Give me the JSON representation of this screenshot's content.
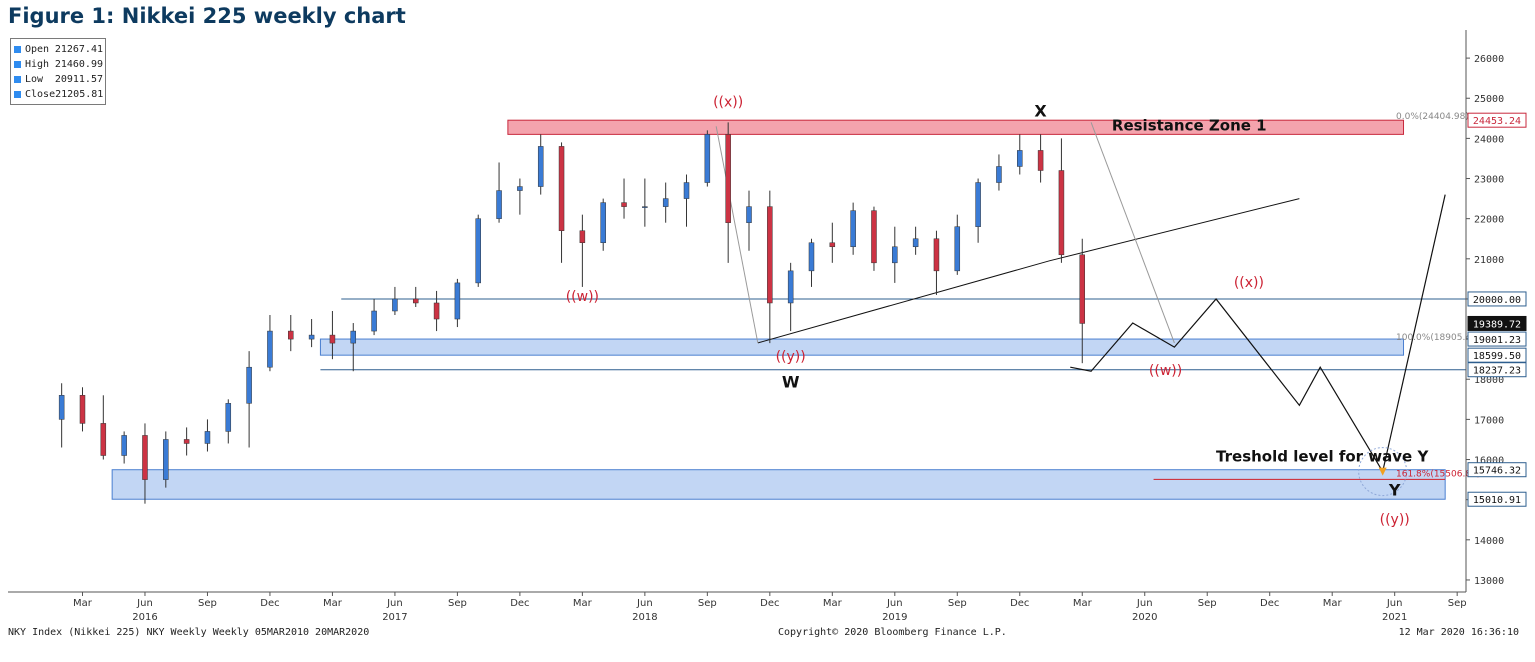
{
  "figure_title": "Figure 1: Nikkei 225 weekly chart",
  "ohlc_box": [
    {
      "key": "Open",
      "value": "21267.41"
    },
    {
      "key": "High",
      "value": "21460.99"
    },
    {
      "key": "Low",
      "value": "20911.57"
    },
    {
      "key": "Close",
      "value": "21205.81"
    }
  ],
  "footer": {
    "left": "NKY Index (Nikkei 225) NKY Weekly  Weekly 05MAR2010 20MAR2020",
    "center": "Copyright© 2020 Bloomberg Finance L.P.",
    "right": "12 Mar 2020 16:36:10"
  },
  "colors": {
    "up_candle": "#3a7bd5",
    "down_candle": "#cc3344",
    "resistance_zone": "#f4a3ad",
    "support_zone": "#c2d6f4",
    "support_zone_border": "#4a7fd0",
    "wave_path": "#111111",
    "label_red": "#cc2233"
  },
  "chart_data": {
    "type": "candlestick",
    "title": "Figure 1: Nikkei 225 weekly chart",
    "y_axis": {
      "side": "right",
      "range": [
        12700,
        26700
      ],
      "ticks": [
        13000,
        14000,
        15000,
        16000,
        17000,
        18000,
        19000,
        20000,
        21000,
        22000,
        23000,
        24000,
        25000,
        26000
      ]
    },
    "x_axis": {
      "month_ticks": [
        "Mar",
        "Jun",
        "Sep",
        "Dec",
        "Mar",
        "Jun",
        "Sep",
        "Dec",
        "Mar",
        "Jun",
        "Sep",
        "Dec",
        "Mar",
        "Jun",
        "Sep",
        "Dec",
        "Mar",
        "Jun",
        "Sep",
        "Dec",
        "Mar",
        "Jun",
        "Sep"
      ],
      "year_labels": [
        "2016",
        "2017",
        "2018",
        "2019",
        "2020",
        "2021"
      ],
      "range": [
        "2016-02",
        "2021-09"
      ]
    },
    "price_tags": [
      {
        "value": 24453.24,
        "label": "24453.24",
        "style": "red"
      },
      {
        "value": 20000.0,
        "label": "20000.00",
        "style": "blue"
      },
      {
        "value": 19389.72,
        "label": "19389.72",
        "style": "black"
      },
      {
        "value": 19001.23,
        "label": "19001.23",
        "style": "blue"
      },
      {
        "value": 18599.5,
        "label": "18599.50",
        "style": "blue"
      },
      {
        "value": 18237.23,
        "label": "18237.23",
        "style": "blue"
      },
      {
        "value": 15746.32,
        "label": "15746.32",
        "style": "blue"
      },
      {
        "value": 15010.91,
        "label": "15010.91",
        "style": "blue"
      }
    ],
    "zones": [
      {
        "name": "Resistance Zone 1",
        "from": "2017-12",
        "to": "2021-07",
        "low": 24100,
        "high": 24453.24,
        "style": "resistance"
      },
      {
        "name": "",
        "from": "2017-03",
        "to": "2021-07",
        "low": 18599.5,
        "high": 19001.23,
        "style": "support"
      },
      {
        "name": "",
        "from": "2016-05",
        "to": "2021-09",
        "low": 15010.91,
        "high": 15746.32,
        "style": "support"
      }
    ],
    "horizontal_lines": [
      {
        "value": 20000.0,
        "from": "2017-04",
        "to": "2021-10"
      },
      {
        "value": 18237.23,
        "from": "2017-03",
        "to": "2021-10"
      },
      {
        "value": 15506.81,
        "from": "2020-07",
        "to": "2021-09",
        "style": "red"
      }
    ],
    "fib_levels": [
      {
        "label": "0.0%(24404.98)",
        "value": 24404.98
      },
      {
        "label": "100.0%(18905.49)",
        "value": 18905.49
      },
      {
        "label": "161.8%(15506.81)",
        "value": 15506.81
      }
    ],
    "wave_labels": [
      {
        "text": "((x))",
        "date": "2018-10",
        "value": 24800,
        "color": "red"
      },
      {
        "text": "X",
        "date": "2020-01",
        "value": 24550,
        "color": "black"
      },
      {
        "text": "((w))",
        "date": "2018-03",
        "value": 19950,
        "color": "red"
      },
      {
        "text": "((y))",
        "date": "2019-01",
        "value": 18450,
        "color": "red"
      },
      {
        "text": "W",
        "date": "2019-01",
        "value": 17800,
        "color": "black"
      },
      {
        "text": "((x))",
        "date": "2020-11",
        "value": 20300,
        "color": "red"
      },
      {
        "text": "((w))",
        "date": "2020-07",
        "value": 18100,
        "color": "red"
      },
      {
        "text": "Y",
        "date": "2021-06",
        "value": 15100,
        "color": "black"
      },
      {
        "text": "((y))",
        "date": "2021-06",
        "value": 14400,
        "color": "red"
      }
    ],
    "text_annotations": [
      {
        "text": "Resistance Zone 1",
        "date": "2020-05",
        "value": 24200
      },
      {
        "text": "Treshold level for wave Y",
        "date": "2020-10",
        "value": 15950
      }
    ],
    "trendlines": [
      {
        "points": [
          [
            "2018-12",
            18905
          ],
          [
            "2020-02",
            20950
          ],
          [
            "2021-02",
            22500
          ]
        ]
      },
      {
        "points": [
          [
            "2018-10",
            24300
          ],
          [
            "2018-12",
            18905
          ]
        ],
        "style": "grey"
      },
      {
        "points": [
          [
            "2020-04",
            24400
          ],
          [
            "2020-08",
            18905
          ]
        ],
        "style": "grey"
      }
    ],
    "projected_path": [
      [
        "2020-03",
        18300
      ],
      [
        "2020-04",
        18200
      ],
      [
        "2020-06",
        19400
      ],
      [
        "2020-08",
        18800
      ],
      [
        "2020-10",
        20000
      ],
      [
        "2021-02",
        17350
      ],
      [
        "2021-03",
        18300
      ],
      [
        "2021-06",
        15700
      ],
      [
        "2021-09",
        22600
      ]
    ],
    "candles": [
      [
        "2016-02",
        17000,
        17900,
        16300,
        17600
      ],
      [
        "2016-03",
        17600,
        17800,
        16700,
        16900
      ],
      [
        "2016-04",
        16900,
        17600,
        16000,
        16100
      ],
      [
        "2016-05",
        16100,
        16700,
        15900,
        16600
      ],
      [
        "2016-06",
        16600,
        16900,
        14900,
        15500
      ],
      [
        "2016-07",
        15500,
        16700,
        15300,
        16500
      ],
      [
        "2016-08",
        16500,
        16800,
        16100,
        16400
      ],
      [
        "2016-09",
        16400,
        17000,
        16200,
        16700
      ],
      [
        "2016-10",
        16700,
        17500,
        16400,
        17400
      ],
      [
        "2016-11",
        17400,
        18700,
        16300,
        18300
      ],
      [
        "2016-12",
        18300,
        19600,
        18200,
        19200
      ],
      [
        "2017-01",
        19200,
        19600,
        18700,
        19000
      ],
      [
        "2017-02",
        19000,
        19500,
        18800,
        19100
      ],
      [
        "2017-03",
        19100,
        19700,
        18500,
        18900
      ],
      [
        "2017-04",
        18900,
        19400,
        18200,
        19200
      ],
      [
        "2017-05",
        19200,
        20000,
        19100,
        19700
      ],
      [
        "2017-06",
        19700,
        20300,
        19600,
        20000
      ],
      [
        "2017-07",
        20000,
        20300,
        19800,
        19900
      ],
      [
        "2017-08",
        19900,
        20200,
        19200,
        19500
      ],
      [
        "2017-09",
        19500,
        20500,
        19300,
        20400
      ],
      [
        "2017-10",
        20400,
        22100,
        20300,
        22000
      ],
      [
        "2017-11",
        22000,
        23400,
        21900,
        22700
      ],
      [
        "2017-12",
        22700,
        23000,
        22100,
        22800
      ],
      [
        "2018-01",
        22800,
        24100,
        22600,
        23800
      ],
      [
        "2018-02",
        23800,
        23900,
        20900,
        21700
      ],
      [
        "2018-03",
        21700,
        22100,
        20300,
        21400
      ],
      [
        "2018-04",
        21400,
        22500,
        21200,
        22400
      ],
      [
        "2018-05",
        22400,
        23000,
        22000,
        22300
      ],
      [
        "2018-06",
        22300,
        23000,
        21800,
        22300
      ],
      [
        "2018-07",
        22300,
        22900,
        21900,
        22500
      ],
      [
        "2018-08",
        22500,
        23100,
        21800,
        22900
      ],
      [
        "2018-09",
        22900,
        24200,
        22800,
        24100
      ],
      [
        "2018-10",
        24100,
        24400,
        20900,
        21900
      ],
      [
        "2018-11",
        21900,
        22700,
        21200,
        22300
      ],
      [
        "2018-12",
        22300,
        22700,
        18900,
        19900
      ],
      [
        "2019-01",
        19900,
        20900,
        19200,
        20700
      ],
      [
        "2019-02",
        20700,
        21500,
        20300,
        21400
      ],
      [
        "2019-03",
        21400,
        21900,
        20900,
        21300
      ],
      [
        "2019-04",
        21300,
        22400,
        21100,
        22200
      ],
      [
        "2019-05",
        22200,
        22300,
        20700,
        20900
      ],
      [
        "2019-06",
        20900,
        21800,
        20400,
        21300
      ],
      [
        "2019-07",
        21300,
        21800,
        21100,
        21500
      ],
      [
        "2019-08",
        21500,
        21700,
        20100,
        20700
      ],
      [
        "2019-09",
        20700,
        22100,
        20600,
        21800
      ],
      [
        "2019-10",
        21800,
        23000,
        21400,
        22900
      ],
      [
        "2019-11",
        22900,
        23600,
        22700,
        23300
      ],
      [
        "2019-12",
        23300,
        24100,
        23100,
        23700
      ],
      [
        "2020-01",
        23700,
        24100,
        22900,
        23200
      ],
      [
        "2020-02",
        23200,
        24000,
        20900,
        21100
      ],
      [
        "2020-03",
        21100,
        21500,
        18400,
        19390
      ]
    ]
  }
}
